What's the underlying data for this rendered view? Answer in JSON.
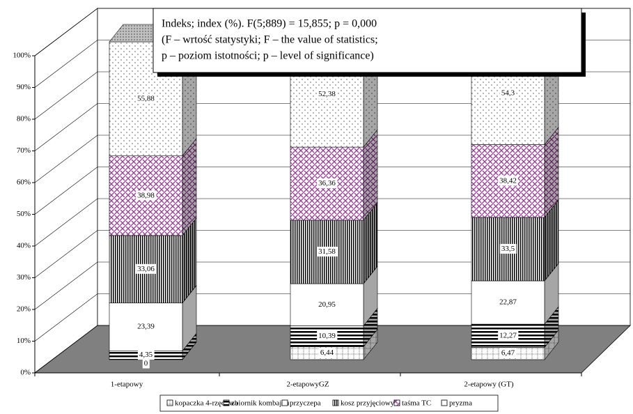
{
  "chart_data": {
    "type": "bar",
    "stacked": "percent",
    "annotation": [
      "Indeks; index (%).  F(5;889) = 15,855; p = 0,000",
      "(F – wrtość statystyki; F – the value of statistics;",
      "p – poziom istotności; p – level of significance)"
    ],
    "categories": [
      "1-etapowy",
      "2-etapowyGZ",
      "2-etapowy (GT)"
    ],
    "series": [
      {
        "name": "kopaczka 4-rzędowa",
        "color": "#000000",
        "values": [
          0,
          6.44,
          6.47
        ],
        "value_labels": [
          "0",
          "6,44",
          "6,47"
        ]
      },
      {
        "name": "zbiornik kombajnu",
        "color": "#000000",
        "values": [
          4.35,
          10.39,
          12.27
        ],
        "value_labels": [
          "4,35",
          "10,39",
          "12,27"
        ]
      },
      {
        "name": "przyczepa",
        "color": "#ffffff",
        "values": [
          23.39,
          20.95,
          22.87
        ],
        "value_labels": [
          "23,39",
          "20,95",
          "22,87"
        ]
      },
      {
        "name": "kosz przyjęciowy",
        "color": "#000000",
        "values": [
          33.06,
          31.58,
          33.5
        ],
        "value_labels": [
          "33,06",
          "31,58",
          "33,5"
        ]
      },
      {
        "name": "taśma TC",
        "color": "#993399",
        "values": [
          38.98,
          36.36,
          38.42
        ],
        "value_labels": [
          "38,98",
          "36,36",
          "38,42"
        ]
      },
      {
        "name": "pryzma",
        "color": "#000000",
        "values": [
          55.88,
          52.38,
          54.3
        ],
        "value_labels": [
          "55,88",
          "52,38",
          "54,3"
        ]
      }
    ],
    "ylim": [
      0,
      100
    ],
    "yticks": [
      {
        "value": 0,
        "label": "0%"
      },
      {
        "value": 10,
        "label": "10%"
      },
      {
        "value": 20,
        "label": "20%"
      },
      {
        "value": 30,
        "label": "30%"
      },
      {
        "value": 40,
        "label": "40%"
      },
      {
        "value": 50,
        "label": "50%"
      },
      {
        "value": 60,
        "label": "60%"
      },
      {
        "value": 70,
        "label": "70%"
      },
      {
        "value": 80,
        "label": "80%"
      },
      {
        "value": 90,
        "label": "90%"
      },
      {
        "value": 100,
        "label": "100%"
      }
    ],
    "grid": true
  }
}
